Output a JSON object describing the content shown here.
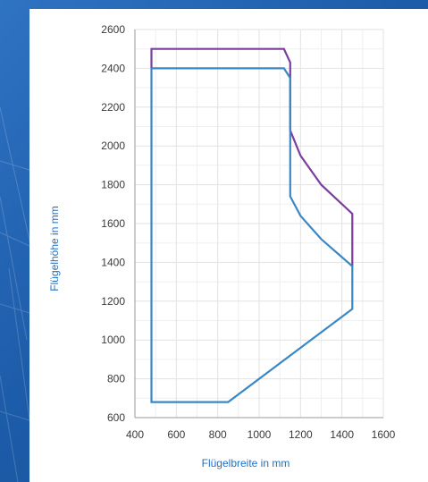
{
  "colors": {
    "background": "#1d5ca9",
    "panel": "#ffffff",
    "grid": "#e2e2e2",
    "axis": "#9a9a9a"
  },
  "chart_data": {
    "type": "line",
    "title": "",
    "xlabel": "Flügelbreite in mm",
    "ylabel": "Flügelhöhe in mm",
    "xlim": [
      400,
      1600
    ],
    "ylim": [
      600,
      2600
    ],
    "x_ticks": [
      400,
      600,
      800,
      1000,
      1200,
      1400,
      1600
    ],
    "x_tick_labels": [
      "400",
      "600",
      "800",
      "1000",
      "1200",
      "1400",
      "1600"
    ],
    "y_ticks": [
      600,
      800,
      1000,
      1200,
      1400,
      1600,
      1800,
      2000,
      2200,
      2400,
      2600
    ],
    "y_tick_labels": [
      "600",
      "800",
      "1000",
      "1200",
      "1400",
      "1600",
      "1800",
      "2000",
      "2200",
      "2400",
      "2600"
    ],
    "grid": true,
    "minor_grid_step": 100,
    "legend": "none",
    "series": [
      {
        "color": "#7a3f9e",
        "x": [
          480,
          480,
          1120,
          1150,
          1150,
          1200,
          1300,
          1450,
          1450
        ],
        "y": [
          2400,
          2500,
          2500,
          2430,
          2080,
          1950,
          1800,
          1650,
          1380
        ]
      },
      {
        "color": "#3a87c6",
        "x": [
          480,
          1120,
          1150,
          1150,
          1200,
          1300,
          1450,
          1450,
          850,
          480,
          480
        ],
        "y": [
          2400,
          2400,
          2350,
          1740,
          1640,
          1520,
          1380,
          1160,
          680,
          680,
          2400
        ]
      }
    ]
  }
}
